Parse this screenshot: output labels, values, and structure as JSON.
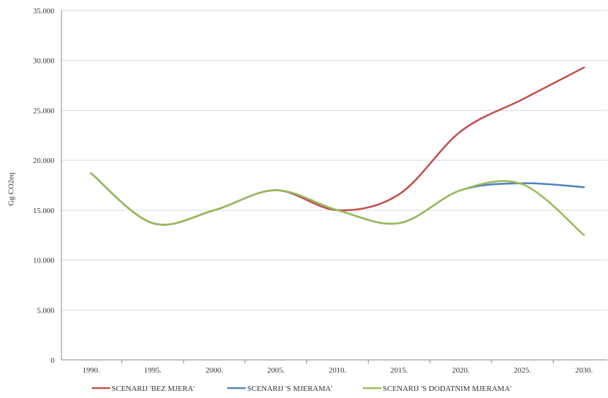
{
  "chart_data": {
    "type": "line",
    "title": "",
    "xlabel": "",
    "ylabel": "Gg CO2eq",
    "x": [
      1990,
      1995,
      2000,
      2005,
      2010,
      2015,
      2020,
      2025,
      2030
    ],
    "x_tick_labels": [
      "1990.",
      "1995.",
      "2000.",
      "2005.",
      "2010.",
      "2015.",
      "2020.",
      "2025.",
      "2030."
    ],
    "y_tick_labels": [
      "0",
      "5.000",
      "10.000",
      "15.000",
      "20.000",
      "25.000",
      "30.000",
      "35.000"
    ],
    "ylim": [
      0,
      35000
    ],
    "grid": "horizontal",
    "legend_position": "bottom",
    "series": [
      {
        "name": "SCENARIJ 'BEZ MJERA'",
        "color": "#c0504d",
        "values": [
          18700,
          13700,
          15000,
          17000,
          15000,
          16600,
          22900,
          26100,
          29300
        ]
      },
      {
        "name": "SCENARIJ 'S MJERAMA'",
        "color": "#4f81bd",
        "values": [
          18700,
          13700,
          15000,
          17000,
          15000,
          13700,
          17000,
          17700,
          17300
        ]
      },
      {
        "name": "SCENARIJ 'S DODATNIM MJERAMA'",
        "color": "#9bbb59",
        "values": [
          18700,
          13700,
          15000,
          17000,
          15000,
          13700,
          17000,
          17600,
          12500
        ]
      }
    ]
  }
}
